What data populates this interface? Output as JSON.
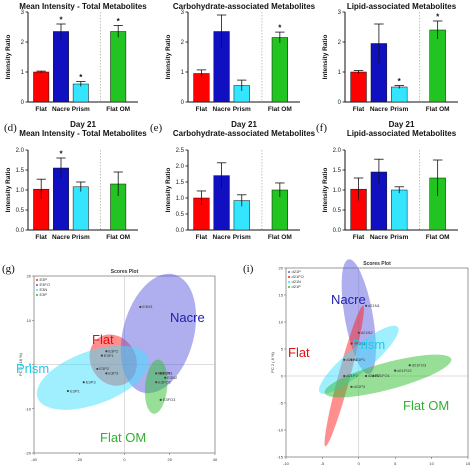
{
  "chart_data": [
    {
      "type": "bar",
      "panel": "",
      "title": "Mean Intensity - Total Metabolites",
      "subtitle": "",
      "ylabel": "Intensity Ratio",
      "ylim": [
        0,
        3
      ],
      "yticks": [
        "0",
        "1",
        "2",
        "3"
      ],
      "categories": [
        "Flat",
        "Nacre",
        "Prism",
        "Flat OM"
      ],
      "values": [
        1.0,
        2.35,
        0.6,
        2.35
      ],
      "errors": [
        0.03,
        0.25,
        0.08,
        0.2
      ],
      "significant": [
        false,
        true,
        true,
        true
      ],
      "colors": [
        "#ff0000",
        "#1010c0",
        "#33e5ff",
        "#22c422"
      ]
    },
    {
      "type": "bar",
      "panel": "",
      "title": "Carbohydrate-associated Metabolites",
      "subtitle": "",
      "ylabel": "Intensity Ratio",
      "ylim": [
        0,
        3
      ],
      "yticks": [
        "0",
        "1",
        "2",
        "3"
      ],
      "categories": [
        "Flat",
        "Nacre",
        "Prism",
        "Flat OM"
      ],
      "values": [
        0.95,
        2.35,
        0.55,
        2.15
      ],
      "errors": [
        0.12,
        0.55,
        0.18,
        0.18
      ],
      "significant": [
        false,
        false,
        false,
        true
      ],
      "colors": [
        "#ff0000",
        "#1010c0",
        "#33e5ff",
        "#22c422"
      ]
    },
    {
      "type": "bar",
      "panel": "",
      "title": "Lipid-associated Metabolites",
      "subtitle": "",
      "ylabel": "Intensity Ratio",
      "ylim": [
        0,
        3
      ],
      "yticks": [
        "0",
        "1",
        "2",
        "3"
      ],
      "categories": [
        "Flat",
        "Nacre",
        "Prism",
        "Flat OM"
      ],
      "values": [
        1.0,
        1.95,
        0.5,
        2.4
      ],
      "errors": [
        0.05,
        0.65,
        0.05,
        0.3
      ],
      "significant": [
        false,
        false,
        true,
        true
      ],
      "colors": [
        "#ff0000",
        "#1010c0",
        "#33e5ff",
        "#22c422"
      ]
    },
    {
      "type": "bar",
      "panel": "(d)",
      "title": "Mean Intensity - Total Metabolites",
      "subtitle": "Day 21",
      "ylabel": "Intensity Ratio",
      "ylim": [
        0,
        2
      ],
      "yticks": [
        "0.0",
        "0.5",
        "1.0",
        "1.5",
        "2.0"
      ],
      "categories": [
        "Flat",
        "Nacre",
        "Prism",
        "Flat OM"
      ],
      "values": [
        1.02,
        1.55,
        1.08,
        1.15
      ],
      "errors": [
        0.25,
        0.25,
        0.12,
        0.3
      ],
      "significant": [
        false,
        true,
        false,
        false
      ],
      "colors": [
        "#ff0000",
        "#1010c0",
        "#33e5ff",
        "#22c422"
      ]
    },
    {
      "type": "bar",
      "panel": "(e)",
      "title": "Carbohydrate-associated Metabolites",
      "subtitle": "Day 21",
      "ylabel": "Intensity Ratio",
      "ylim": [
        0,
        2.5
      ],
      "yticks": [
        "0.0",
        "0.5",
        "1.0",
        "1.5",
        "2.0",
        "2.5"
      ],
      "categories": [
        "Flat",
        "Nacre",
        "Prism",
        "Flat OM"
      ],
      "values": [
        1.0,
        1.7,
        0.92,
        1.25
      ],
      "errors": [
        0.22,
        0.4,
        0.18,
        0.22
      ],
      "significant": [
        false,
        false,
        false,
        false
      ],
      "colors": [
        "#ff0000",
        "#1010c0",
        "#33e5ff",
        "#22c422"
      ]
    },
    {
      "type": "bar",
      "panel": "(f)",
      "title": "Lipid-associated Metabolites",
      "subtitle": "Day 21",
      "ylabel": "Intensity Ratio",
      "ylim": [
        0,
        2
      ],
      "yticks": [
        "0.0",
        "0.5",
        "1.0",
        "1.5",
        "2.0"
      ],
      "categories": [
        "Flat",
        "Nacre",
        "Prism",
        "Flat OM"
      ],
      "values": [
        1.02,
        1.45,
        1.0,
        1.3
      ],
      "errors": [
        0.28,
        0.32,
        0.08,
        0.45
      ],
      "significant": [
        false,
        false,
        false,
        false
      ],
      "colors": [
        "#ff0000",
        "#1010c0",
        "#33e5ff",
        "#22c422"
      ]
    },
    {
      "type": "scatter",
      "panel": "(g)",
      "title": "Scores Plot",
      "xlabel": "",
      "ylabel": "PC 2 ( 18 %)",
      "xlim": [
        -40,
        40
      ],
      "ylim": [
        -20,
        20
      ],
      "xticks": [
        -40,
        -20,
        0,
        20,
        40
      ],
      "yticks": [
        -20,
        -10,
        0,
        10,
        20
      ],
      "legend": [
        "E3P",
        "E3FO",
        "E3N",
        "E3P"
      ],
      "groups": [
        {
          "name": "Flat",
          "color": "#ff2020",
          "cx": -5,
          "cy": 1,
          "rx": 10,
          "ry": 6,
          "angle": -30,
          "points": [
            {
              "label": "E3P1",
              "x": -10,
              "y": 2
            },
            {
              "label": "E3P2",
              "x": -8,
              "y": 3
            },
            {
              "label": "E3P3",
              "x": -8,
              "y": -2
            }
          ]
        },
        {
          "name": "Nacre",
          "color": "#6060e0",
          "cx": 15,
          "cy": 7,
          "rx": 27,
          "ry": 8,
          "angle": -75,
          "points": [
            {
              "label": "E3N3",
              "x": 7,
              "y": 13
            },
            {
              "label": "E3N1",
              "x": 16,
              "y": -2
            },
            {
              "label": "E3N2",
              "x": 18,
              "y": -3
            }
          ]
        },
        {
          "name": "Prism",
          "color": "#40e0ff",
          "cx": -14,
          "cy": -3,
          "rx": 26,
          "ry": 6,
          "angle": -20,
          "points": [
            {
              "label": "E3P1",
              "x": -25,
              "y": -6
            },
            {
              "label": "E3P2",
              "x": -12,
              "y": -1
            },
            {
              "label": "E3P3",
              "x": -18,
              "y": -4
            }
          ]
        },
        {
          "name": "Flat OM",
          "color": "#30c030",
          "cx": 14,
          "cy": -5,
          "rx": 12,
          "ry": 2.5,
          "angle": -85,
          "points": [
            {
              "label": "E3FO1",
              "x": 14,
              "y": -2
            },
            {
              "label": "E3FO2",
              "x": 14,
              "y": -4
            },
            {
              "label": "E3FO3",
              "x": 16,
              "y": -8
            }
          ]
        }
      ]
    },
    {
      "type": "scatter",
      "panel": "(i)",
      "title": "Scores Plot",
      "xlabel": "",
      "ylabel": "PC 2 ( 8 %)",
      "xlim": [
        -10,
        15
      ],
      "ylim": [
        -15,
        20
      ],
      "xticks": [
        -10,
        -5,
        0,
        5,
        10,
        15
      ],
      "yticks": [
        -15,
        -10,
        -5,
        0,
        5,
        10,
        15,
        20
      ],
      "legend": [
        "d21P",
        "d21FO",
        "d21N",
        "d21P"
      ],
      "groups": [
        {
          "name": "Nacre",
          "color": "#6060e0",
          "cx": 0,
          "cy": 11,
          "rx": 8,
          "ry": 2.6,
          "angle": -100,
          "points": [
            {
              "label": "d21N1",
              "x": 1,
              "y": 13
            },
            {
              "label": "d21N2",
              "x": 0,
              "y": 8
            },
            {
              "label": "d21N3",
              "x": -1,
              "y": 6
            }
          ]
        },
        {
          "name": "Flat",
          "color": "#ff2020",
          "cx": -2,
          "cy": 0,
          "rx": 10,
          "ry": 1.1,
          "angle": -75,
          "points": [
            {
              "label": "d21P1",
              "x": -2,
              "y": 3
            },
            {
              "label": "d21P2",
              "x": -2,
              "y": 0
            }
          ]
        },
        {
          "name": "Prism",
          "color": "#40e0ff",
          "cx": 0,
          "cy": 3,
          "rx": 7,
          "ry": 2.3,
          "angle": -40,
          "points": [
            {
              "label": "d21P1",
              "x": -1,
              "y": 3
            },
            {
              "label": "d21P2",
              "x": 1,
              "y": 0
            },
            {
              "label": "d21P3",
              "x": -1,
              "y": -2
            }
          ]
        },
        {
          "name": "Flat OM",
          "color": "#30c030",
          "cx": 4,
          "cy": 0,
          "rx": 9,
          "ry": 2.5,
          "angle": -15,
          "points": [
            {
              "label": "d21FO1",
              "x": 2,
              "y": 0
            },
            {
              "label": "d21FO2",
              "x": 5,
              "y": 1
            },
            {
              "label": "d21FO3",
              "x": 7,
              "y": 2
            }
          ]
        }
      ]
    }
  ]
}
